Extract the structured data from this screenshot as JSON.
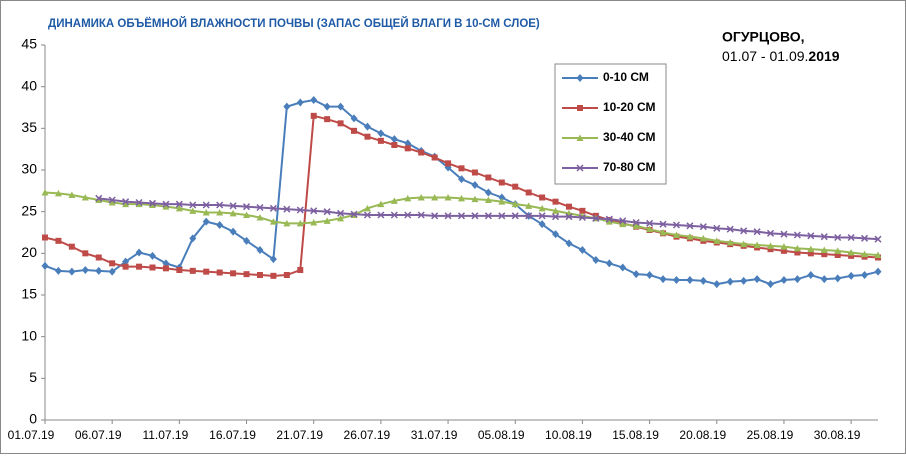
{
  "chart_data": {
    "type": "line",
    "title": "ДИНАМИКА ОБЪЁМНОЙ ВЛАЖНОСТИ ПОЧВЫ (ЗАПАС ОБЩЕЙ ВЛАГИ В 10-СМ СЛОЕ)",
    "annotation": {
      "place": "ОГУРЦОВО,",
      "period": "01.07 - 01.09.",
      "year": "2019"
    },
    "categories": [
      "01.07.19",
      null,
      null,
      null,
      null,
      "06.07.19",
      null,
      null,
      null,
      null,
      "11.07.19",
      null,
      null,
      null,
      null,
      "16.07.19",
      null,
      null,
      null,
      null,
      "21.07.19",
      null,
      null,
      null,
      null,
      "26.07.19",
      null,
      null,
      null,
      null,
      "31.07.19",
      null,
      null,
      null,
      null,
      "05.08.19",
      null,
      null,
      null,
      null,
      "10.08.19",
      null,
      null,
      null,
      null,
      "15.08.19",
      null,
      null,
      null,
      null,
      "20.08.19",
      null,
      null,
      null,
      null,
      "25.08.19",
      null,
      null,
      null,
      null,
      "30.08.19",
      null,
      null
    ],
    "series": [
      {
        "name": "0-10 СМ",
        "color": "#4a7ebb",
        "marker": "diamond",
        "values": [
          18.5,
          17.9,
          17.8,
          18.0,
          17.9,
          17.8,
          19.0,
          20.1,
          19.7,
          18.8,
          18.3,
          21.8,
          23.8,
          23.4,
          22.6,
          21.5,
          20.4,
          19.3,
          37.6,
          38.1,
          38.4,
          37.6,
          37.6,
          36.2,
          35.2,
          34.4,
          33.7,
          33.2,
          32.3,
          31.6,
          30.3,
          28.9,
          28.2,
          27.3,
          26.7,
          25.9,
          24.5,
          23.5,
          22.3,
          21.2,
          20.4,
          19.2,
          18.8,
          18.3,
          17.5,
          17.4,
          16.9,
          16.8,
          16.8,
          16.7,
          16.3,
          16.6,
          16.7,
          16.9,
          16.3,
          16.8,
          16.9,
          17.4,
          16.9,
          17.0,
          17.3,
          17.4,
          17.8
        ]
      },
      {
        "name": "10-20 СМ",
        "color": "#be4b48",
        "marker": "square",
        "values": [
          21.9,
          21.5,
          20.8,
          20.0,
          19.5,
          18.8,
          18.4,
          18.4,
          18.3,
          18.2,
          18.0,
          17.9,
          17.8,
          17.7,
          17.6,
          17.5,
          17.4,
          17.3,
          17.4,
          18.0,
          36.5,
          36.1,
          35.6,
          34.7,
          34.0,
          33.5,
          33.0,
          32.6,
          32.1,
          31.5,
          30.8,
          30.2,
          29.7,
          29.1,
          28.5,
          28.0,
          27.3,
          26.7,
          26.2,
          25.6,
          25.1,
          24.5,
          24.0,
          23.6,
          23.2,
          22.8,
          22.4,
          22.0,
          21.8,
          21.5,
          21.3,
          21.1,
          20.9,
          20.7,
          20.5,
          20.3,
          20.1,
          20.0,
          19.9,
          19.8,
          19.7,
          19.6,
          19.5
        ]
      },
      {
        "name": "30-40 СМ",
        "color": "#98b954",
        "marker": "triangle",
        "values": [
          27.3,
          27.2,
          27.0,
          26.7,
          26.4,
          26.1,
          25.9,
          25.9,
          25.8,
          25.6,
          25.4,
          25.1,
          24.9,
          24.9,
          24.8,
          24.6,
          24.3,
          23.8,
          23.6,
          23.6,
          23.7,
          23.9,
          24.2,
          24.6,
          25.4,
          25.9,
          26.3,
          26.6,
          26.7,
          26.7,
          26.7,
          26.6,
          26.5,
          26.4,
          26.2,
          25.9,
          25.7,
          25.4,
          25.1,
          24.8,
          24.5,
          24.2,
          23.8,
          23.5,
          23.3,
          22.9,
          22.5,
          22.2,
          22.0,
          21.8,
          21.5,
          21.3,
          21.1,
          21.0,
          20.9,
          20.8,
          20.6,
          20.5,
          20.4,
          20.3,
          20.1,
          19.9,
          19.8
        ]
      },
      {
        "name": "70-80 СМ",
        "color": "#7d60a0",
        "marker": "x",
        "values": [
          null,
          null,
          null,
          null,
          26.6,
          26.4,
          26.2,
          26.1,
          26.0,
          25.9,
          25.9,
          25.8,
          25.8,
          25.8,
          25.7,
          25.6,
          25.5,
          25.4,
          25.3,
          25.2,
          25.1,
          25.0,
          24.8,
          24.7,
          24.6,
          24.6,
          24.6,
          24.6,
          24.6,
          24.5,
          24.5,
          24.5,
          24.5,
          24.5,
          24.5,
          24.5,
          24.5,
          24.5,
          24.4,
          24.4,
          24.3,
          24.2,
          24.1,
          23.9,
          23.7,
          23.6,
          23.5,
          23.4,
          23.3,
          23.2,
          23.0,
          22.9,
          22.7,
          22.6,
          22.4,
          22.3,
          22.2,
          22.1,
          22.0,
          21.9,
          21.9,
          21.8,
          21.7
        ]
      }
    ],
    "ylim": [
      0,
      45
    ],
    "yticks": [
      0,
      5,
      10,
      15,
      20,
      25,
      30,
      35,
      40,
      45
    ],
    "grid": false
  }
}
